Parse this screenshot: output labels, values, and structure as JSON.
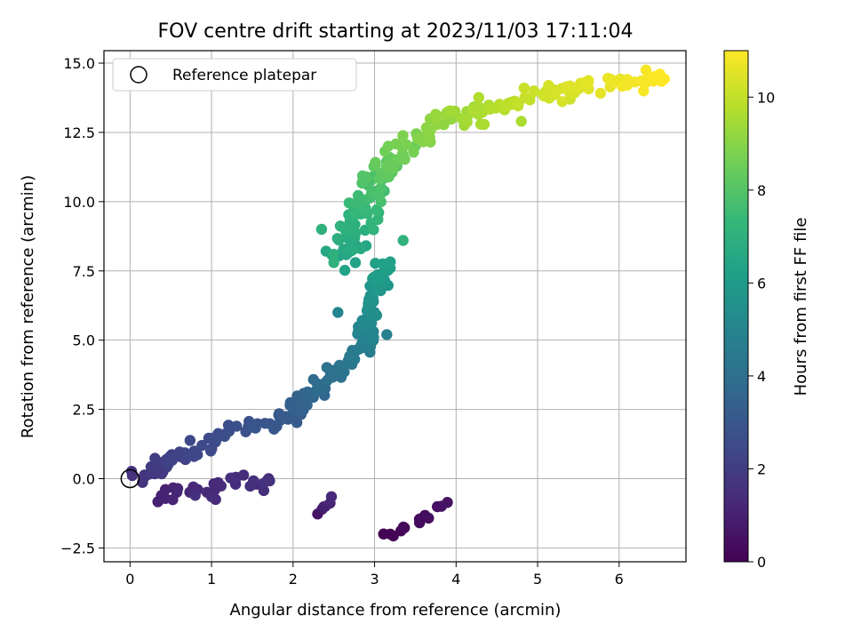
{
  "chart_data": {
    "type": "scatter",
    "title": "FOV centre drift starting at 2023/11/03 17:11:04",
    "xlabel": "Angular distance from reference (arcmin)",
    "ylabel": "Rotation from reference (arcmin)",
    "xlim": [
      -0.32,
      6.82
    ],
    "ylim": [
      -3.0,
      15.45
    ],
    "xticks": [
      0,
      1,
      2,
      3,
      4,
      5,
      6
    ],
    "yticks": [
      -2.5,
      0.0,
      2.5,
      5.0,
      7.5,
      10.0,
      12.5,
      15.0
    ],
    "ytick_labels": [
      "−2.5",
      "0.0",
      "2.5",
      "5.0",
      "7.5",
      "10.0",
      "12.5",
      "15.0"
    ],
    "grid": true,
    "legend": {
      "position": "top-left",
      "entries": [
        "Reference platepar"
      ]
    },
    "reference_point": {
      "x": 0.0,
      "y": 0.0,
      "marker": "hollow circle"
    },
    "colorbar": {
      "label": "Hours from first FF file",
      "range": [
        0,
        11
      ],
      "ticks": [
        0,
        2,
        4,
        6,
        8,
        10
      ],
      "colormap": "viridis",
      "colors": [
        "#440154",
        "#482878",
        "#3e4989",
        "#31688e",
        "#26828e",
        "#1f9e89",
        "#35b779",
        "#6ece58",
        "#b5de2b",
        "#fde725"
      ]
    },
    "segments": [
      {
        "hours": [
          0.0,
          0.55
        ],
        "n": 14,
        "x": [
          3.1,
          3.9
        ],
        "y": [
          -2.2,
          -0.9
        ],
        "spread": 0.22
      },
      {
        "hours": [
          0.6,
          1.25
        ],
        "n": 6,
        "x": [
          2.3,
          2.5
        ],
        "y": [
          -1.3,
          -0.8
        ],
        "spread": 0.12
      },
      {
        "hours": [
          1.0,
          1.6
        ],
        "n": 28,
        "x": [
          0.3,
          1.7
        ],
        "y": [
          -0.6,
          0.0
        ],
        "spread": 0.3
      },
      {
        "hours": [
          1.6,
          2.1
        ],
        "n": 22,
        "x": [
          0.05,
          0.6
        ],
        "y": [
          0.0,
          0.8
        ],
        "spread": 0.22
      },
      {
        "hours": [
          2.1,
          3.3
        ],
        "n": 55,
        "x": [
          0.4,
          2.2
        ],
        "y": [
          0.6,
          2.6
        ],
        "spread": 0.25
      },
      {
        "hours": [
          3.3,
          4.7
        ],
        "n": 55,
        "x": [
          2.0,
          2.9
        ],
        "y": [
          2.6,
          4.8
        ],
        "spread": 0.22
      },
      {
        "hours": [
          4.7,
          6.3
        ],
        "n": 55,
        "x": [
          2.85,
          3.1
        ],
        "y": [
          4.8,
          7.8
        ],
        "spread": 0.22
      },
      {
        "hours": [
          6.3,
          8.2
        ],
        "n": 70,
        "x": [
          2.6,
          3.1
        ],
        "y": [
          7.8,
          11.3
        ],
        "spread": 0.38
      },
      {
        "hours": [
          8.2,
          9.4
        ],
        "n": 45,
        "x": [
          3.0,
          4.0
        ],
        "y": [
          11.0,
          13.3
        ],
        "spread": 0.3
      },
      {
        "hours": [
          9.4,
          10.3
        ],
        "n": 40,
        "x": [
          4.0,
          5.2
        ],
        "y": [
          13.0,
          14.0
        ],
        "spread": 0.3
      },
      {
        "hours": [
          10.3,
          11.0
        ],
        "n": 35,
        "x": [
          5.2,
          6.5
        ],
        "y": [
          13.9,
          14.5
        ],
        "spread": 0.3
      }
    ],
    "outliers": [
      {
        "x": 2.35,
        "y": 9.0,
        "hours": 7.0
      },
      {
        "x": 2.5,
        "y": 8.1,
        "hours": 7.0
      },
      {
        "x": 2.5,
        "y": 7.8,
        "hours": 7.0
      },
      {
        "x": 3.35,
        "y": 8.6,
        "hours": 7.1
      },
      {
        "x": 2.55,
        "y": 6.0,
        "hours": 5.0
      },
      {
        "x": 3.15,
        "y": 5.2,
        "hours": 4.8
      },
      {
        "x": 3.05,
        "y": 9.6,
        "hours": 7.2
      },
      {
        "x": 3.5,
        "y": 12.0,
        "hours": 8.5
      },
      {
        "x": 4.1,
        "y": 12.75,
        "hours": 9.4
      },
      {
        "x": 4.8,
        "y": 12.9,
        "hours": 9.6
      },
      {
        "x": 5.4,
        "y": 13.7,
        "hours": 10.2
      },
      {
        "x": 1.55,
        "y": -0.2,
        "hours": 1.2
      },
      {
        "x": 1.7,
        "y": 0.0,
        "hours": 1.2
      },
      {
        "x": 1.05,
        "y": -0.75,
        "hours": 1.3
      },
      {
        "x": 1.3,
        "y": 0.05,
        "hours": 1.3
      },
      {
        "x": 6.3,
        "y": 14.0,
        "hours": 10.9
      },
      {
        "x": 6.5,
        "y": 14.6,
        "hours": 11.0
      },
      {
        "x": 1.0,
        "y": -0.65,
        "hours": 1.4
      },
      {
        "x": 0.8,
        "y": -0.6,
        "hours": 1.5
      }
    ]
  }
}
